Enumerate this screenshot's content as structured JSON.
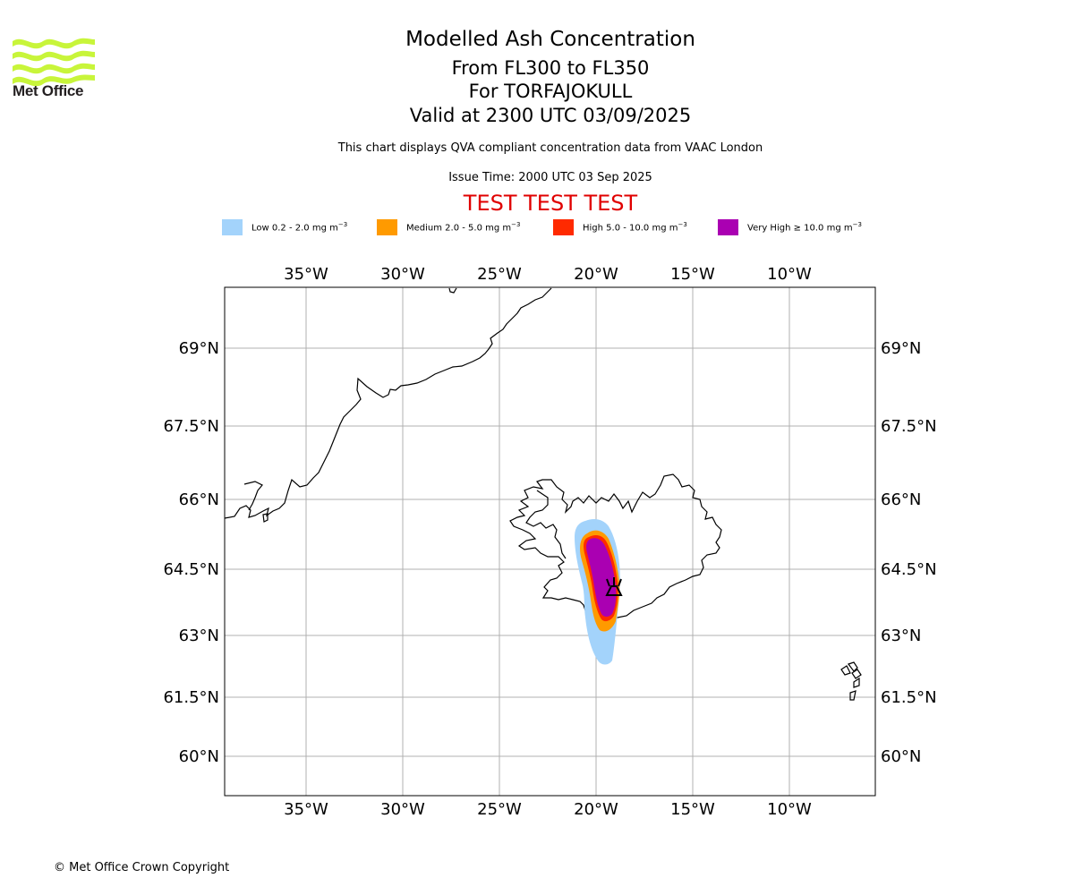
{
  "header": {
    "title": "Modelled Ash Concentration",
    "levels": "From FL300 to FL350",
    "volcano": "For TORFAJOKULL",
    "valid": "Valid at 2300 UTC 03/09/2025",
    "description": "This chart displays QVA compliant concentration data from VAAC London",
    "issue_time": "Issue Time: 2000 UTC 03 Sep 2025",
    "test_banner": "TEST TEST TEST"
  },
  "logo": {
    "text": "Met Office",
    "color": "#c8f53a"
  },
  "legend": [
    {
      "label": "Low 0.2 - 2.0 mg m",
      "sup": "−3",
      "color": "#a3d3fb"
    },
    {
      "label": "Medium 2.0 - 5.0 mg m",
      "sup": "−3",
      "color": "#ff9a00"
    },
    {
      "label": "High 5.0 - 10.0 mg m",
      "sup": "−3",
      "color": "#ff2a00"
    },
    {
      "label": "Very High ≥ 10.0 mg m",
      "sup": "−3",
      "color": "#aa00b2"
    }
  ],
  "map": {
    "longitude_labels": [
      "35°W",
      "30°W",
      "25°W",
      "20°W",
      "15°W",
      "10°W"
    ],
    "latitude_labels": [
      "69°N",
      "67.5°N",
      "66°N",
      "64.5°N",
      "63°N",
      "61.5°N",
      "60°N"
    ],
    "volcano_symbol": "volcano-icon"
  },
  "footer": {
    "copyright": "© Met Office Crown Copyright"
  }
}
